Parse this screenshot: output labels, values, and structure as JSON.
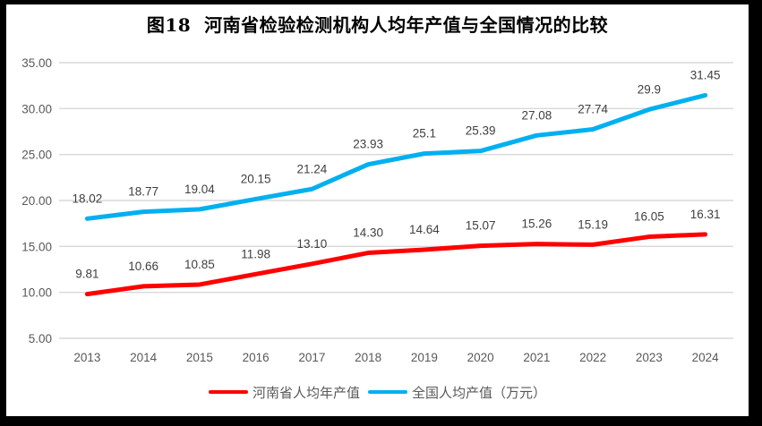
{
  "frame": {
    "background": "#000000",
    "canvas_background": "#FFFFFF"
  },
  "chart_data": {
    "type": "line",
    "title": "图18  河南省检验检测机构人均年产值与全国情况的比较",
    "categories": [
      "2013",
      "2014",
      "2015",
      "2016",
      "2017",
      "2018",
      "2019",
      "2020",
      "2021",
      "2022",
      "2023",
      "2024"
    ],
    "series": [
      {
        "name": "河南省人均年产值",
        "color": "#FF0000",
        "values": [
          9.81,
          10.66,
          10.85,
          11.98,
          13.1,
          14.3,
          14.64,
          15.07,
          15.26,
          15.19,
          16.05,
          16.31
        ],
        "labels": [
          "9.81",
          "10.66",
          "10.85",
          "11.98",
          "13.10",
          "14.30",
          "14.64",
          "15.07",
          "15.26",
          "15.19",
          "16.05",
          "16.31"
        ]
      },
      {
        "name": "全国人均产值（万元）",
        "color": "#00B0F0",
        "values": [
          18.02,
          18.77,
          19.04,
          20.15,
          21.24,
          23.93,
          25.1,
          25.39,
          27.08,
          27.74,
          29.9,
          31.45
        ],
        "labels": [
          "18.02",
          "18.77",
          "19.04",
          "20.15",
          "21.24",
          "23.93",
          "25.1",
          "25.39",
          "27.08",
          "27.74",
          "29.9",
          "31.45"
        ]
      }
    ],
    "y_axis": {
      "min": 5,
      "max": 35,
      "step": 5,
      "tick_labels": [
        "5.00",
        "10.00",
        "15.00",
        "20.00",
        "25.00",
        "30.00",
        "35.00"
      ]
    },
    "x_axis": {
      "tick_labels": [
        "2013",
        "2014",
        "2015",
        "2016",
        "2017",
        "2018",
        "2019",
        "2020",
        "2021",
        "2022",
        "2023",
        "2024"
      ]
    },
    "grid": true,
    "legend_position": "bottom",
    "colors": {
      "gridline": "#D9D9D9",
      "axis_text": "#595959",
      "data_label": "#404040",
      "title_text": "#000000"
    }
  }
}
